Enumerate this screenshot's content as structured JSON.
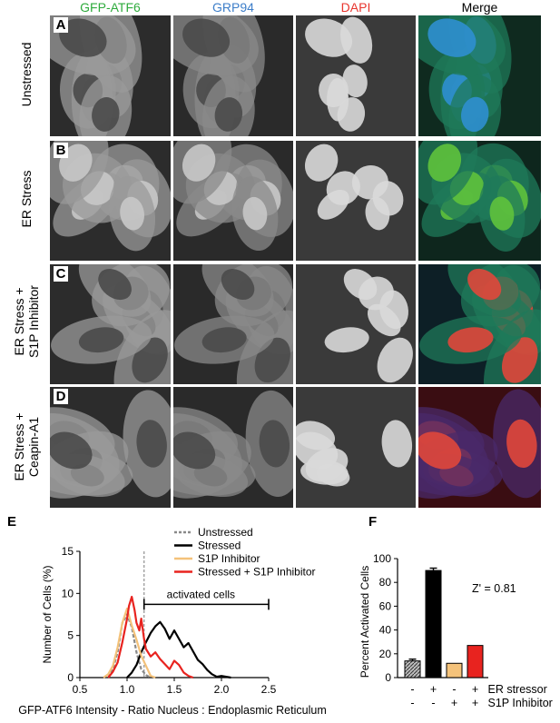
{
  "micrograph": {
    "columns": [
      {
        "label": "GFP-ATF6",
        "color": "#2eab3c"
      },
      {
        "label": "GRP94",
        "color": "#3d7ec9"
      },
      {
        "label": "DAPI",
        "color": "#e8352e"
      },
      {
        "label": "Merge",
        "color": "#000000"
      }
    ],
    "rows": [
      {
        "letter": "A",
        "lines": [
          "Unstressed"
        ]
      },
      {
        "letter": "B",
        "lines": [
          "ER Stress"
        ]
      },
      {
        "letter": "C",
        "lines": [
          "ER Stress +",
          "S1P Inhibitor"
        ]
      },
      {
        "letter": "D",
        "lines": [
          "ER Stress +",
          "Ceapin-A1"
        ]
      }
    ]
  },
  "panel_E": {
    "letter": "E",
    "chart_data": {
      "type": "line",
      "xlabel": "GFP-ATF6 Intensity - Ratio Nucleus : Endoplasmic Reticulum",
      "ylabel": "Number of Cells (%)",
      "xlim": [
        0.5,
        2.5
      ],
      "ylim": [
        0,
        15
      ],
      "xticks": [
        "0.5",
        "1.0",
        "1.5",
        "2.0",
        "2.5"
      ],
      "yticks": [
        "0",
        "5",
        "10",
        "15"
      ],
      "threshold_x": 1.18,
      "annotation": "activated cells",
      "annotation_range": [
        1.18,
        2.5
      ],
      "series": [
        {
          "name": "Unstressed",
          "color": "#8a8a8a",
          "dash": true,
          "x": [
            0.8,
            0.85,
            0.9,
            0.95,
            1.0,
            1.05,
            1.1,
            1.15,
            1.2,
            1.25
          ],
          "y": [
            0,
            1,
            3,
            6.5,
            7.5,
            6,
            3,
            1,
            0.3,
            0
          ]
        },
        {
          "name": "Stressed",
          "color": "#000000",
          "dash": false,
          "x": [
            1.0,
            1.05,
            1.1,
            1.15,
            1.2,
            1.25,
            1.3,
            1.35,
            1.4,
            1.45,
            1.5,
            1.55,
            1.6,
            1.65,
            1.7,
            1.75,
            1.8,
            1.85,
            1.9,
            1.95,
            2.0,
            2.1
          ],
          "y": [
            0,
            0.6,
            1.5,
            3,
            4.2,
            5.3,
            6.1,
            6.6,
            5.8,
            4.6,
            5.6,
            4.6,
            3.6,
            4.1,
            3.1,
            2.1,
            1.6,
            0.9,
            0.4,
            0.1,
            0.2,
            0
          ]
        },
        {
          "name": "S1P Inhibitor",
          "color": "#f4c27a",
          "dash": false,
          "x": [
            0.75,
            0.8,
            0.85,
            0.9,
            0.95,
            1.0,
            1.05,
            1.1,
            1.15,
            1.2,
            1.25,
            1.3
          ],
          "y": [
            0,
            0.4,
            1.4,
            3.6,
            6.5,
            8.2,
            6.2,
            4.5,
            2.6,
            1.4,
            0.2,
            0
          ]
        },
        {
          "name": "Stressed + S1P Inhibitor",
          "color": "#e8231f",
          "dash": false,
          "x": [
            0.8,
            0.85,
            0.9,
            0.95,
            1.0,
            1.02,
            1.05,
            1.08,
            1.1,
            1.13,
            1.15,
            1.18,
            1.2,
            1.25,
            1.3,
            1.35,
            1.4,
            1.45,
            1.5,
            1.55,
            1.6,
            1.65,
            1.7
          ],
          "y": [
            0,
            0.7,
            1.8,
            4.2,
            7.0,
            8.5,
            9.6,
            8.0,
            6.5,
            5.6,
            7.0,
            4.6,
            3.4,
            2.5,
            3.0,
            2.2,
            1.6,
            1.0,
            2.0,
            1.5,
            0.6,
            0.2,
            0
          ]
        }
      ]
    }
  },
  "panel_F": {
    "letter": "F",
    "chart_data": {
      "type": "bar",
      "ylabel": "Percent Activated Cells",
      "ylim": [
        0,
        100
      ],
      "yticks": [
        "0",
        "20",
        "40",
        "60",
        "80",
        "100"
      ],
      "annotation": "Z' = 0.81",
      "values": [
        14,
        90,
        12,
        27
      ],
      "errors": [
        1.5,
        2,
        0,
        0
      ],
      "colors": [
        "#9a9a9a",
        "#000000",
        "#f4c27a",
        "#e8231f"
      ],
      "condition_rows": [
        {
          "label": "ER stressor",
          "marks": [
            "-",
            "+",
            "-",
            "+"
          ]
        },
        {
          "label": "S1P Inhibitor",
          "marks": [
            "-",
            "-",
            "+",
            "+"
          ]
        }
      ]
    }
  }
}
